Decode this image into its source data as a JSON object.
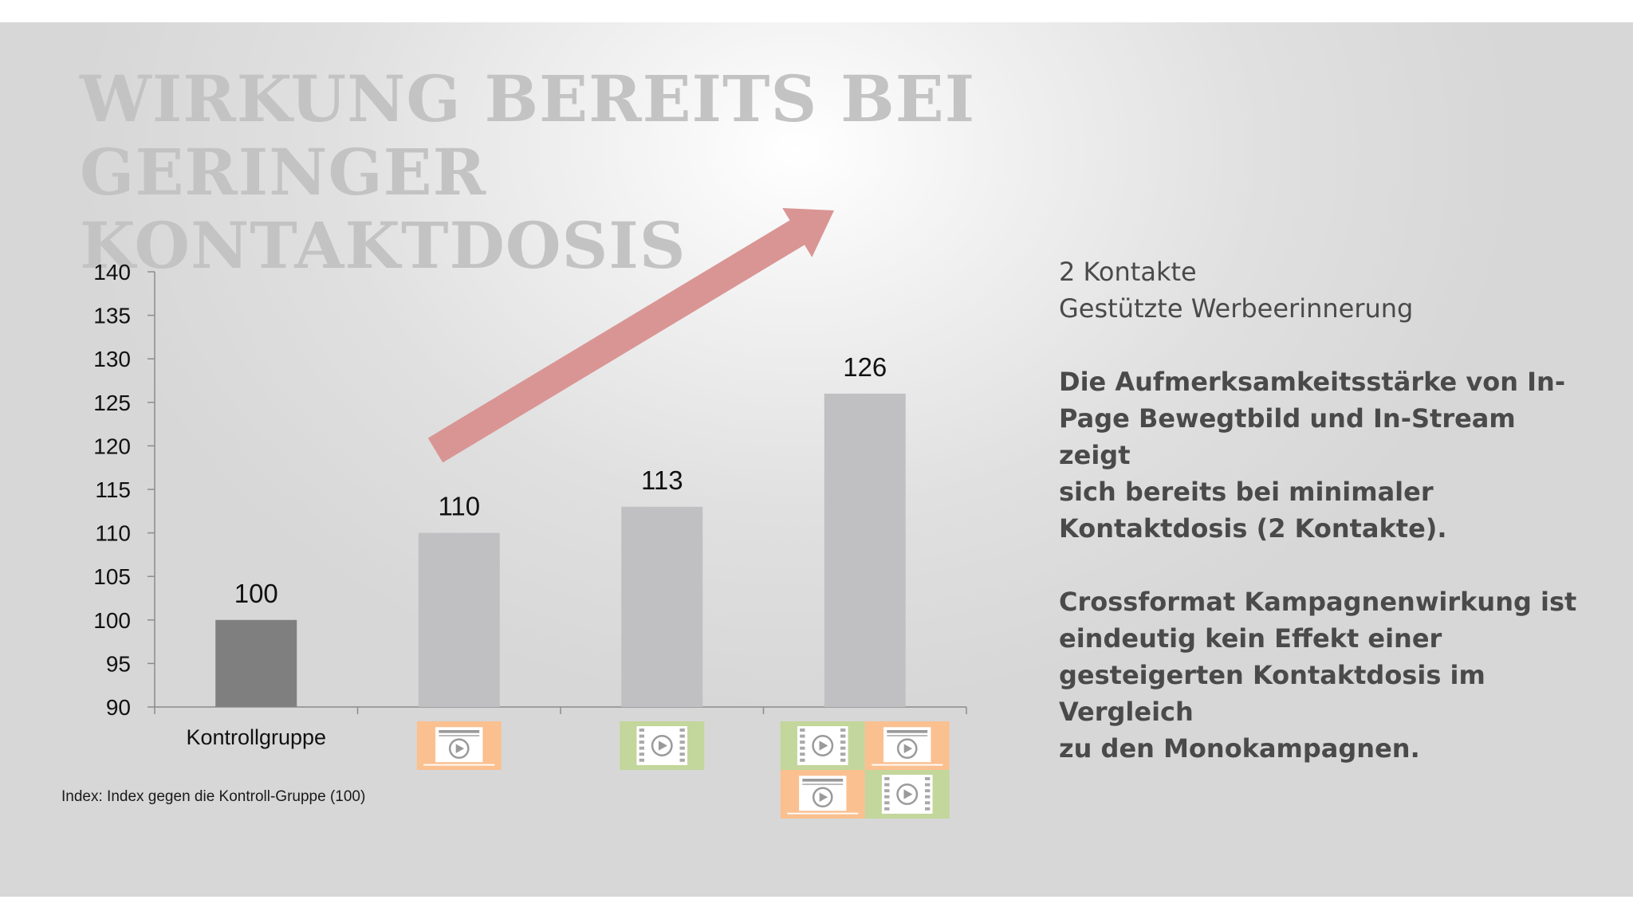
{
  "slide": {
    "title_lines": [
      "WIRKUNG BEREITS BEI GERINGER",
      "KONTAKTDOSIS"
    ],
    "side_light_lines": [
      "2 Kontakte",
      "Gestützte Werbeerinnerung"
    ],
    "side_bold_1": [
      "Die Aufmerksamkeitsstärke von In-",
      "Page Bewegtbild und In-Stream zeigt",
      "sich bereits bei minimaler",
      "Kontaktdosis (2 Kontakte)."
    ],
    "side_bold_2": [
      "Crossformat Kampagnenwirkung ist",
      "eindeutig kein Effekt einer",
      "gesteigerten Kontaktdosis im Vergleich",
      "zu den Monokampagnen."
    ],
    "footnote": "Index: Index gegen die Kontroll-Gruppe (100)"
  },
  "colors": {
    "control_bar": "#7f7f7f",
    "bar": "#c0bfc1",
    "arrow": "#d99594",
    "inpage": "#fac090",
    "instream": "#c3d69b"
  },
  "chart_data": {
    "type": "bar",
    "categories": [
      "Kontrollgruppe",
      "",
      "",
      ""
    ],
    "category_icons": [
      [],
      [
        "inpage-video-icon"
      ],
      [
        "instream-video-icon"
      ],
      [
        "instream-video-icon",
        "inpage-video-icon",
        "inpage-video-icon",
        "instream-video-icon"
      ]
    ],
    "values": [
      100,
      110,
      113,
      126
    ],
    "data_labels": [
      "100",
      "110",
      "113",
      "126"
    ],
    "ylim": [
      90,
      140
    ],
    "yticks": [
      90,
      95,
      100,
      105,
      110,
      115,
      120,
      125,
      130,
      135,
      140
    ],
    "title": "",
    "xlabel": "",
    "ylabel": "",
    "grid": false,
    "legend": "none",
    "annotation": "upward-trend-arrow"
  }
}
